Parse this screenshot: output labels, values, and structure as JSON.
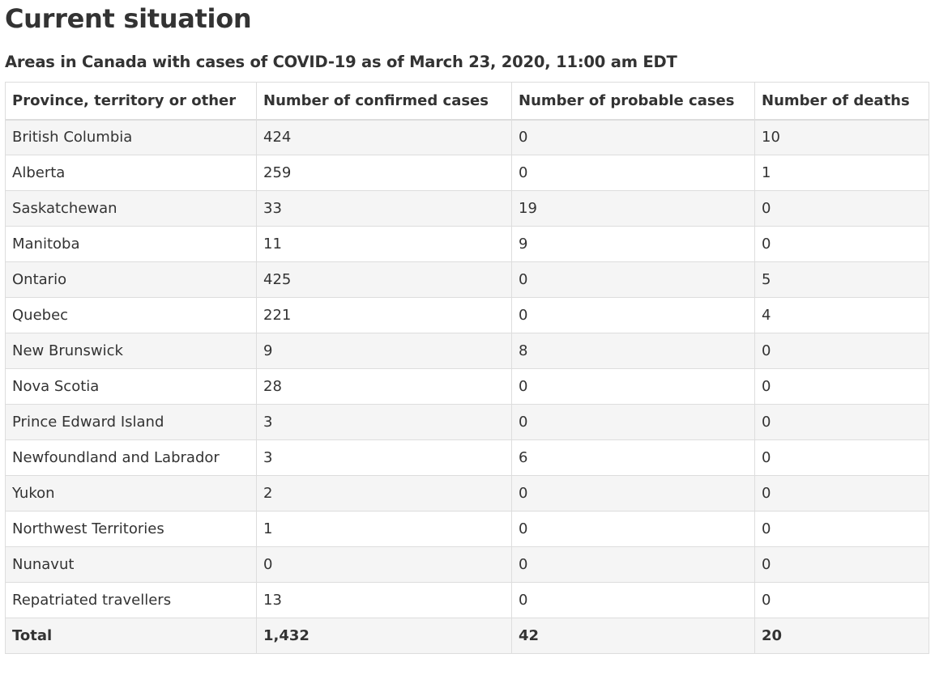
{
  "page": {
    "heading": "Current situation",
    "caption": "Areas in Canada with cases of COVID-19 as of March 23, 2020, 11:00 am EDT"
  },
  "table": {
    "headers": [
      "Province, territory or other",
      "Number of confirmed cases",
      "Number of probable cases",
      "Number of deaths"
    ],
    "rows": [
      [
        "British Columbia",
        "424",
        "0",
        "10"
      ],
      [
        "Alberta",
        "259",
        "0",
        "1"
      ],
      [
        "Saskatchewan",
        "33",
        "19",
        "0"
      ],
      [
        "Manitoba",
        "11",
        "9",
        "0"
      ],
      [
        "Ontario",
        "425",
        "0",
        "5"
      ],
      [
        "Quebec",
        "221",
        "0",
        "4"
      ],
      [
        "New Brunswick",
        "9",
        "8",
        "0"
      ],
      [
        "Nova Scotia",
        "28",
        "0",
        "0"
      ],
      [
        "Prince Edward Island",
        "3",
        "0",
        "0"
      ],
      [
        "Newfoundland and Labrador",
        "3",
        "6",
        "0"
      ],
      [
        "Yukon",
        "2",
        "0",
        "0"
      ],
      [
        "Northwest Territories",
        "1",
        "0",
        "0"
      ],
      [
        "Nunavut",
        "0",
        "0",
        "0"
      ],
      [
        "Repatriated travellers",
        "13",
        "0",
        "0"
      ]
    ],
    "total": [
      "Total",
      "1,432",
      "42",
      "20"
    ]
  }
}
